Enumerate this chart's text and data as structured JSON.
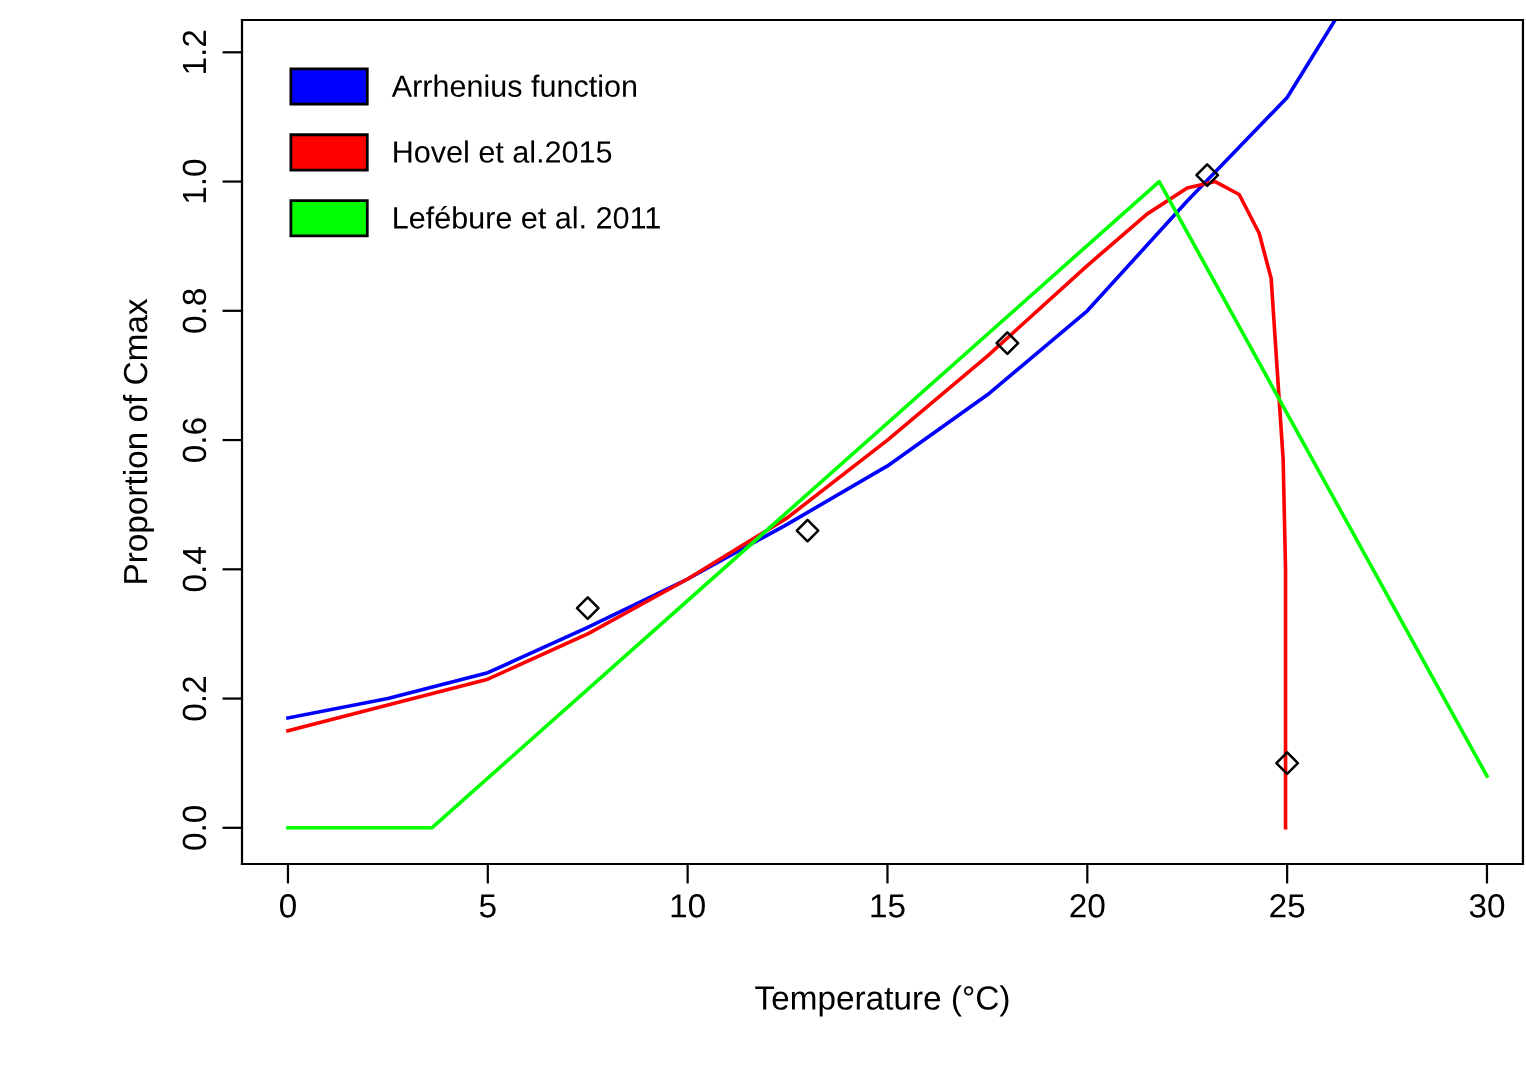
{
  "chart_data": {
    "type": "line",
    "xlabel": "Temperature (°C)",
    "ylabel": "Proportion of Cmax",
    "xlim": [
      -1.15,
      30.9
    ],
    "ylim": [
      -0.056,
      1.25
    ],
    "xticks": [
      0,
      5,
      10,
      15,
      20,
      25,
      30
    ],
    "yticks": [
      {
        "value": 0,
        "label": "0.0"
      },
      0.2,
      0.4,
      0.6,
      0.8,
      {
        "value": 1,
        "label": "1.0"
      },
      1.2
    ],
    "grid": false,
    "legend": "top left",
    "line_style": "solid",
    "series": [
      {
        "name": "Arrhenius function",
        "color": "#0000ff",
        "x": [
          0,
          2.5,
          5,
          7.5,
          10,
          12.5,
          15,
          17.5,
          20,
          22.5,
          25,
          26.2
        ],
        "values": [
          0.17,
          0.2,
          0.24,
          0.31,
          0.385,
          0.47,
          0.56,
          0.67,
          0.8,
          0.97,
          1.13,
          1.25
        ]
      },
      {
        "name": "Hovel et al.2015",
        "color": "#ff0000",
        "x": [
          0,
          2.5,
          5,
          7.5,
          10,
          12.5,
          15,
          17.5,
          20,
          21.5,
          22.5,
          23.2,
          23.8,
          24.3,
          24.6,
          24.9,
          24.96,
          24.96
        ],
        "values": [
          0.15,
          0.19,
          0.23,
          0.3,
          0.385,
          0.48,
          0.6,
          0.73,
          0.87,
          0.95,
          0.99,
          1.0,
          0.98,
          0.92,
          0.85,
          0.57,
          0.4,
          0
        ]
      },
      {
        "name": "Lefébure et al. 2011",
        "color": "#00ff00",
        "x": [
          0,
          3.6,
          21.8,
          30
        ],
        "values": [
          0,
          0,
          1.0,
          0.08
        ]
      },
      {
        "type": "scatter",
        "color": "#000000",
        "marker": "diamond",
        "x": [
          7.5,
          13,
          18,
          23,
          25
        ],
        "values": [
          0.34,
          0.46,
          0.75,
          1.01,
          0.1
        ]
      }
    ]
  }
}
